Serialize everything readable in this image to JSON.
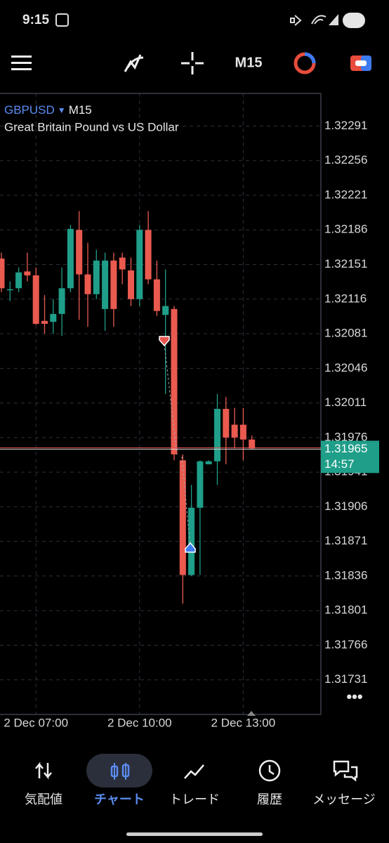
{
  "status_bar": {
    "time": "9:15",
    "battery": "50"
  },
  "toolbar": {
    "timeframe": "M15"
  },
  "chart_data": {
    "type": "candlestick",
    "symbol": "GBPUSD",
    "timeframe": "M15",
    "subtitle": "Great Britain Pound vs US Dollar",
    "categories": [
      null,
      null,
      null,
      null,
      "2 Dec 07:00",
      null,
      null,
      null,
      null,
      null,
      null,
      null,
      null,
      null,
      null,
      null,
      "2 Dec 10:00",
      null,
      null,
      null,
      null,
      null,
      null,
      null,
      null,
      null,
      null,
      null,
      "2 Dec 13:00",
      null
    ],
    "open": [
      1.32157,
      1.32126,
      1.32127,
      1.32144,
      1.3214,
      1.32094,
      1.32093,
      1.32101,
      1.32127,
      1.32186,
      1.32141,
      1.32121,
      1.32106,
      1.32155,
      1.32158,
      1.32145,
      1.32116,
      1.32186,
      1.32136,
      1.321,
      1.32106,
      1.31953,
      1.31837,
      1.31905,
      1.31949,
      1.31952,
      1.32005,
      1.31989,
      1.31989,
      1.31974
    ],
    "high": [
      1.32163,
      1.32134,
      1.32148,
      1.32163,
      1.32148,
      1.3212,
      1.32116,
      1.32148,
      1.32191,
      1.32205,
      1.32173,
      1.32166,
      1.32163,
      1.32163,
      1.32163,
      1.32158,
      1.32191,
      1.32205,
      1.32155,
      1.32146,
      1.32109,
      1.31959,
      1.31928,
      1.31953,
      1.31953,
      1.3202,
      1.32017,
      1.32006,
      1.32006,
      1.31978
    ],
    "low": [
      1.32123,
      1.32114,
      1.32123,
      1.32134,
      1.3209,
      1.32081,
      1.32081,
      1.32079,
      1.32123,
      1.32095,
      1.32088,
      1.32116,
      1.32084,
      1.32088,
      1.32131,
      1.32109,
      1.32109,
      1.32131,
      1.32099,
      1.3202,
      1.31953,
      1.31808,
      1.31836,
      1.31837,
      1.31949,
      1.31928,
      1.31949,
      1.31965,
      1.31953,
      1.31964
    ],
    "close": [
      1.32127,
      1.32126,
      1.32143,
      1.3214,
      1.32091,
      1.32091,
      1.32101,
      1.32127,
      1.32187,
      1.32141,
      1.32121,
      1.32155,
      1.32155,
      1.32106,
      1.32146,
      1.32116,
      1.32186,
      1.32136,
      1.32104,
      1.32109,
      1.31959,
      1.31837,
      1.31905,
      1.31952,
      1.31952,
      1.32005,
      1.31976,
      1.31976,
      1.31974,
      1.31965
    ],
    "up_color": "#1f9e89",
    "down_color": "#ea5a4f",
    "ylim": [
      1.31696,
      1.32324
    ],
    "yticks": [
      1.31731,
      1.31766,
      1.31801,
      1.31836,
      1.31871,
      1.31906,
      1.31941,
      1.31976,
      1.32011,
      1.32046,
      1.32081,
      1.32116,
      1.32151,
      1.32186,
      1.32221,
      1.32256,
      1.32291
    ],
    "grid": true,
    "last_price": 1.31965,
    "countdown": "14:57"
  },
  "bottom_nav": {
    "items": [
      "気配値",
      "チャート",
      "トレード",
      "履歴",
      "メッセージ"
    ],
    "active": 1
  }
}
